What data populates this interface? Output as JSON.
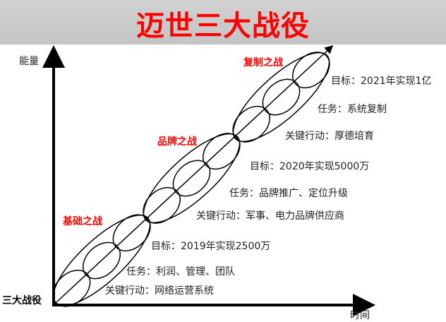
{
  "title": "迈世三大战役",
  "axes": {
    "y_label": "能量",
    "x_label": "时间",
    "origin_label": "三大战役"
  },
  "battles": [
    {
      "name": "基础之战",
      "goal": "目标：2019年实现2500万",
      "task": "任务：利润、管理、团队",
      "action": "关键行动：网络运营系统"
    },
    {
      "name": "品牌之战",
      "goal": "目标：2020年实现5000万",
      "task": "任务：品牌推广、定位升级",
      "action": "关键行动：军事、电力品牌供应商"
    },
    {
      "name": "复制之战",
      "goal": "目标：2021年实现1亿",
      "task": "任务：系统复制",
      "action": "关键行动：厚德培育"
    }
  ],
  "colors": {
    "title": "#ff0000",
    "battle_name": "#ff0000",
    "header_bg": "#c8c8c8"
  }
}
